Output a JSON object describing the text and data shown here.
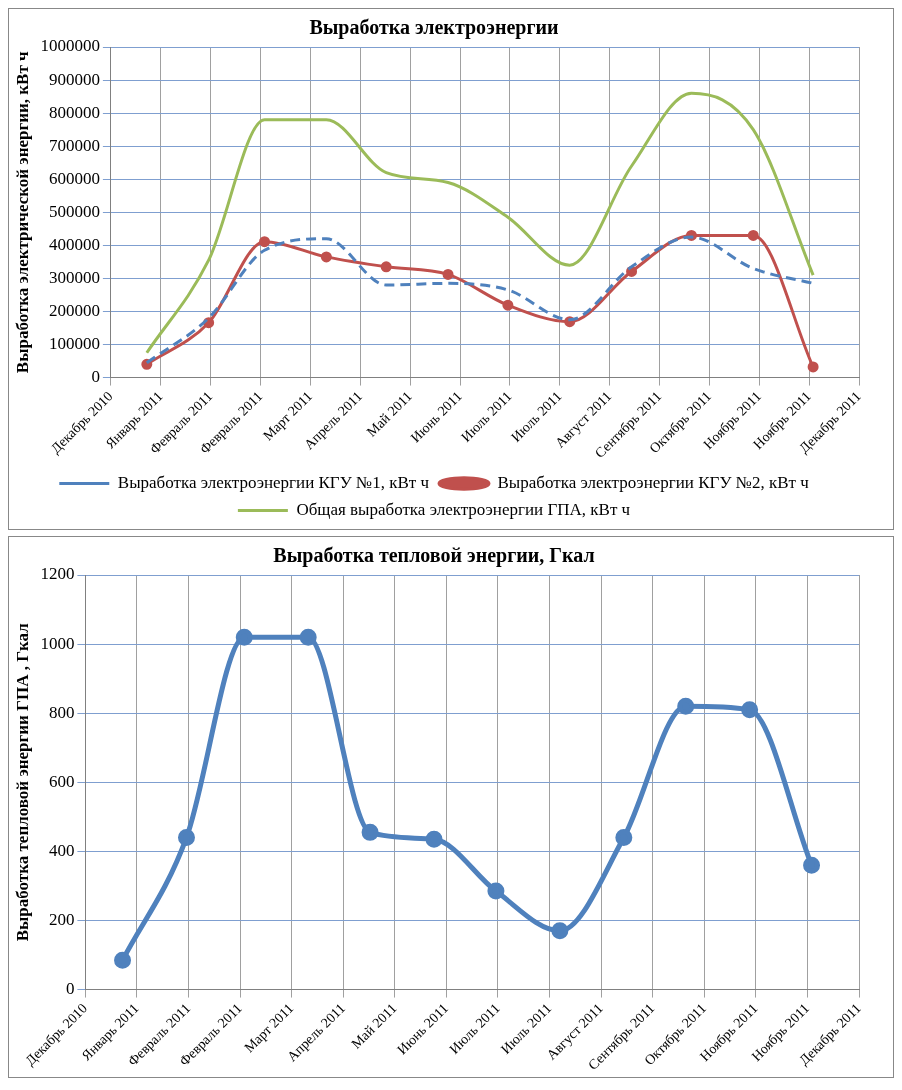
{
  "chart_data": [
    {
      "type": "line",
      "title": "Выработка электроэнергии",
      "ylabel": "Выработка электрической энергии, кВт ч",
      "grid": true,
      "legend": "bottom",
      "x": [
        "2011-01-01",
        "2011-02-01",
        "2011-03-01",
        "2011-04-01",
        "2011-05-01",
        "2011-06-01",
        "2011-07-01",
        "2011-08-01",
        "2011-09-01",
        "2011-10-01",
        "2011-11-01",
        "2011-12-01"
      ],
      "xlim": [
        "2010-12-14",
        "2011-12-24"
      ],
      "xticks": [
        {
          "value": "2010-12-14",
          "label": "Декабрь 2010"
        },
        {
          "value": "2011-01-08",
          "label": "Январь 2011"
        },
        {
          "value": "2011-02-02",
          "label": "Февраль 2011"
        },
        {
          "value": "2011-02-27",
          "label": "Февраль 2011"
        },
        {
          "value": "2011-03-24",
          "label": "Март 2011"
        },
        {
          "value": "2011-04-18",
          "label": "Апрель 2011"
        },
        {
          "value": "2011-05-13",
          "label": "Май 2011"
        },
        {
          "value": "2011-06-07",
          "label": "Июнь 2011"
        },
        {
          "value": "2011-07-02",
          "label": "Июль 2011"
        },
        {
          "value": "2011-07-27",
          "label": "Июль 2011"
        },
        {
          "value": "2011-08-21",
          "label": "Август 2011"
        },
        {
          "value": "2011-09-15",
          "label": "Сентябрь 2011"
        },
        {
          "value": "2011-10-10",
          "label": "Октябрь 2011"
        },
        {
          "value": "2011-11-04",
          "label": "Ноябрь 2011"
        },
        {
          "value": "2011-11-29",
          "label": "Ноябрь 2011"
        },
        {
          "value": "2011-12-24",
          "label": "Декабрь 2011"
        }
      ],
      "ylim": [
        0,
        1000000
      ],
      "yticks": [
        0,
        100000,
        200000,
        300000,
        400000,
        500000,
        600000,
        700000,
        800000,
        900000,
        1000000
      ],
      "series": [
        {
          "name": "Выработка электроэнергии КГУ №1, кВт ч",
          "color": "#4f81bd",
          "line_style": "dashed",
          "marker": "none",
          "values": [
            45000,
            180000,
            385000,
            420000,
            280000,
            285000,
            265000,
            175000,
            335000,
            425000,
            330000,
            285000
          ]
        },
        {
          "name": "Выработка электроэнергии КГУ №2, кВт ч",
          "color": "#c0504d",
          "line_style": "solid",
          "marker": "circle",
          "values": [
            40000,
            166000,
            411000,
            365000,
            335000,
            312000,
            219000,
            169000,
            321000,
            430000,
            430000,
            32000
          ]
        },
        {
          "name": "Общая выработка электроэнергии ГПА, кВт ч",
          "color": "#9bbb59",
          "line_style": "solid",
          "marker": "none",
          "values": [
            75000,
            355000,
            780000,
            780000,
            620000,
            590000,
            485000,
            340000,
            640000,
            860000,
            750000,
            310000
          ]
        }
      ]
    },
    {
      "type": "line",
      "title": "Выработка тепловой энергии, Гкал",
      "ylabel": "Выработка тепловой энергии ГПА , Гкал",
      "grid": true,
      "x": [
        "2011-01-01",
        "2011-02-01",
        "2011-03-01",
        "2011-04-01",
        "2011-05-01",
        "2011-06-01",
        "2011-07-01",
        "2011-08-01",
        "2011-09-01",
        "2011-10-01",
        "2011-11-01",
        "2011-12-01"
      ],
      "xlim": [
        "2010-12-14",
        "2011-12-24"
      ],
      "xticks": [
        {
          "value": "2010-12-14",
          "label": "Декабрь 2010"
        },
        {
          "value": "2011-01-08",
          "label": "Январь 2011"
        },
        {
          "value": "2011-02-02",
          "label": "Февраль 2011"
        },
        {
          "value": "2011-02-27",
          "label": "Февраль 2011"
        },
        {
          "value": "2011-03-24",
          "label": "Март 2011"
        },
        {
          "value": "2011-04-18",
          "label": "Апрель 2011"
        },
        {
          "value": "2011-05-13",
          "label": "Май 2011"
        },
        {
          "value": "2011-06-07",
          "label": "Июнь 2011"
        },
        {
          "value": "2011-07-02",
          "label": "Июль 2011"
        },
        {
          "value": "2011-07-27",
          "label": "Июль 2011"
        },
        {
          "value": "2011-08-21",
          "label": "Август 2011"
        },
        {
          "value": "2011-09-15",
          "label": "Сентябрь 2011"
        },
        {
          "value": "2011-10-10",
          "label": "Октябрь 2011"
        },
        {
          "value": "2011-11-04",
          "label": "Ноябрь 2011"
        },
        {
          "value": "2011-11-29",
          "label": "Ноябрь 2011"
        },
        {
          "value": "2011-12-24",
          "label": "Декабрь 2011"
        }
      ],
      "ylim": [
        0,
        1200
      ],
      "yticks": [
        0,
        200,
        400,
        600,
        800,
        1000,
        1200
      ],
      "series": [
        {
          "color": "#4f81bd",
          "line_style": "solid",
          "marker": "circle",
          "values": [
            85,
            440,
            1020,
            1020,
            455,
            435,
            285,
            170,
            440,
            820,
            810,
            360
          ]
        }
      ]
    }
  ]
}
